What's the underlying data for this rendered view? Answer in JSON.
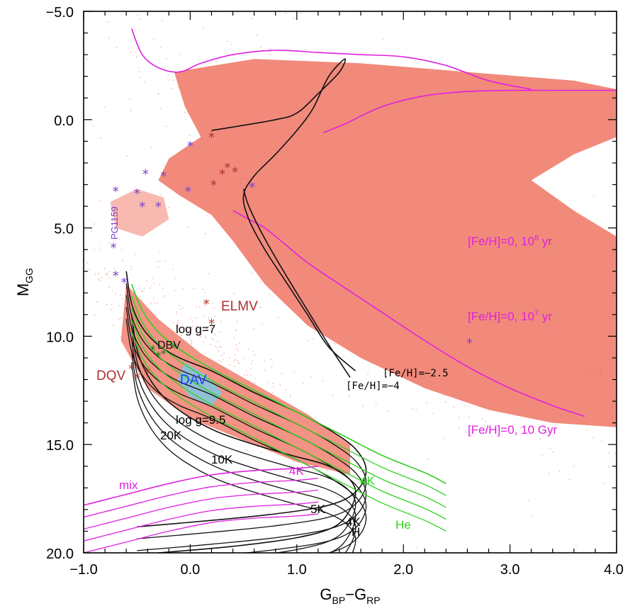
{
  "chart_data": {
    "type": "scatter",
    "title": "",
    "xlabel": "G",
    "xlabel_sub": "BP",
    "xlabel_mid": "−G",
    "xlabel_sub2": "RP",
    "ylabel": "M",
    "ylabel_sub": "GG",
    "xlim": [
      -1.0,
      4.0
    ],
    "ylim": [
      -5.0,
      20.0
    ],
    "y_inverted": true,
    "x_ticks": [
      "−1.0",
      "0.0",
      "1.0",
      "2.0",
      "3.0",
      "4.0"
    ],
    "x_tick_values": [
      -1,
      0,
      1,
      2,
      3,
      4
    ],
    "y_ticks": [
      "−5.0",
      "0.0",
      "5.0",
      "10.0",
      "15.0",
      "20.0"
    ],
    "y_tick_values": [
      -5,
      0,
      5,
      10,
      15,
      20
    ],
    "grid": false,
    "colors": {
      "background_stars": "#f08070",
      "isochrone_solar": "#e020e0",
      "isochrone_poor": "#111111",
      "wd_hydrogen": "#111111",
      "wd_helium": "#30d020",
      "wd_mix": "#e020e0",
      "dav_region": "#7ec8e3",
      "variables_purple": "#7a3fd0",
      "variables_red": "#b03030"
    },
    "annotations": {
      "fe0_1e8": "[Fe/H]=0, 10",
      "fe0_1e8_exp": "8",
      "fe0_1e7": "[Fe/H]=0, 10",
      "fe0_1e7_exp": "7",
      "fe0_10gyr": "[Fe/H]=0, 10 Gyr",
      "feh_m25": "[Fe/H]=−2.5",
      "feh_m4": "[Fe/H]=−4",
      "sigma": "10σ",
      "elmv": "ELMV",
      "dqv": "DQV",
      "dav": "DAV",
      "dbv": "DBV",
      "pg1159": "PG1159",
      "logg7": "log g=7",
      "logg95": "log g=9.5",
      "k20": "20K",
      "k10": "10K",
      "k5": "5K",
      "k4_black": "4K",
      "k4_mix": "4K",
      "k4_he": "4K",
      "h": "H",
      "he": "He",
      "mix": "mix"
    },
    "series": [
      {
        "name": "[Fe/H]=0, 10 Gyr",
        "color": "#e020e0",
        "x": [
          0.4,
          0.55,
          0.7,
          0.9,
          1.1,
          1.4,
          1.8,
          2.2,
          2.6,
          3.0,
          3.4,
          3.7
        ],
        "y": [
          4.2,
          4.6,
          5.0,
          5.8,
          6.6,
          7.6,
          8.9,
          10.2,
          11.4,
          12.4,
          13.2,
          13.7
        ]
      },
      {
        "name": "[Fe/H]=0, 10^7 yr",
        "color": "#e020e0",
        "x": [
          -0.55,
          -0.45,
          -0.3,
          -0.1,
          0.1,
          0.4,
          0.8,
          1.2,
          1.6,
          2.0,
          2.4,
          2.8,
          3.2
        ],
        "y": [
          -4.2,
          -3.0,
          -2.4,
          -2.2,
          -2.6,
          -3.0,
          -3.2,
          -3.1,
          -3.0,
          -2.9,
          -2.5,
          -1.8,
          -1.4
        ]
      },
      {
        "name": "[Fe/H]=0, 10^8 yr",
        "color": "#e020e0",
        "x": [
          1.25,
          1.45,
          1.8,
          2.2,
          2.6,
          3.0,
          3.4,
          4.0
        ],
        "y": [
          0.6,
          0.2,
          -0.6,
          -1.1,
          -1.3,
          -1.35,
          -1.35,
          -1.35
        ]
      },
      {
        "name": "[Fe/H]=-2.5",
        "color": "#111111",
        "x": [
          0.2,
          0.45,
          0.8,
          1.0,
          1.2,
          1.4,
          1.45,
          1.3,
          1.15,
          1.0,
          0.8,
          0.6,
          0.5,
          0.55,
          0.7,
          0.9,
          1.1,
          1.3,
          1.55
        ],
        "y": [
          0.5,
          0.3,
          0.0,
          -0.3,
          -1.2,
          -2.2,
          -2.8,
          -2.0,
          -0.5,
          0.5,
          1.6,
          2.6,
          3.5,
          4.6,
          6.0,
          7.5,
          9.0,
          10.5,
          11.6
        ]
      },
      {
        "name": "[Fe/H]=-4",
        "color": "#111111",
        "x": [
          0.5,
          0.55,
          0.7,
          0.9,
          1.1,
          1.3,
          1.5
        ],
        "y": [
          3.2,
          4.0,
          5.5,
          7.2,
          8.8,
          10.4,
          11.9
        ]
      },
      {
        "name": "H cooling log g=7",
        "color": "#111111",
        "x": [
          -0.6,
          -0.55,
          -0.45,
          -0.3,
          -0.1,
          0.2,
          0.6,
          1.0,
          1.3,
          1.55,
          1.65,
          1.55,
          1.3,
          0.8,
          0.2,
          -0.5
        ],
        "y": [
          7.0,
          8.5,
          9.6,
          10.4,
          11.0,
          11.6,
          12.6,
          13.5,
          14.3,
          15.2,
          16.2,
          17.2,
          17.8,
          18.2,
          18.5,
          18.8
        ]
      },
      {
        "name": "H cooling log g=9.5",
        "color": "#111111",
        "x": [
          -0.55,
          -0.5,
          -0.4,
          -0.25,
          -0.05,
          0.25,
          0.6,
          0.95,
          1.25,
          1.45,
          1.55,
          1.5,
          1.35,
          1.0,
          0.4,
          -0.3
        ],
        "y": [
          9.0,
          10.6,
          11.8,
          12.8,
          13.6,
          14.4,
          15.0,
          15.5,
          15.9,
          16.4,
          17.1,
          18.0,
          18.8,
          19.3,
          19.7,
          20.0
        ]
      },
      {
        "name": "He cooling",
        "color": "#30d020",
        "x": [
          -0.55,
          -0.45,
          -0.3,
          -0.1,
          0.2,
          0.6,
          1.0,
          1.4,
          1.8,
          2.2,
          2.4
        ],
        "y": [
          7.6,
          8.8,
          9.8,
          10.6,
          11.5,
          12.5,
          13.5,
          14.5,
          15.5,
          16.3,
          16.8
        ]
      },
      {
        "name": "mix cooling",
        "color": "#e020e0",
        "x": [
          -1.0,
          -0.6,
          -0.2,
          0.2,
          0.6,
          1.0,
          1.2
        ],
        "y": [
          17.8,
          17.3,
          16.8,
          16.4,
          16.2,
          16.1,
          16.0
        ]
      }
    ]
  }
}
